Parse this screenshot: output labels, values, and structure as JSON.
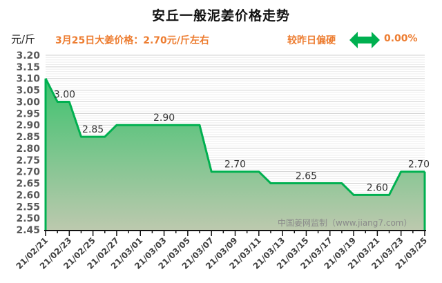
{
  "header": {
    "title": "安丘一般泥姜价格走势",
    "unit": "元/斤",
    "headline": "3月25日大姜价格：2.70元/斤左右",
    "compare_label": "较昨日偏硬",
    "change_icon": "left-right-arrow-icon",
    "change_pct": "0.00%"
  },
  "colors": {
    "accent": "#ED7D31",
    "line": "#00B050",
    "fill_top": "#3DC26E",
    "fill_bottom": "#BCC9AE",
    "arrow": "#00B050"
  },
  "watermark": "中国姜网监制（www.jiang7.com）",
  "chart_data": {
    "type": "area",
    "title": "安丘一般泥姜价格走势",
    "xlabel": "",
    "ylabel": "元/斤",
    "ylim": [
      2.45,
      3.2
    ],
    "ytick_step": 0.05,
    "yticks": [
      "3.20",
      "3.15",
      "3.10",
      "3.05",
      "3.00",
      "2.95",
      "2.90",
      "2.85",
      "2.80",
      "2.75",
      "2.70",
      "2.65",
      "2.60",
      "2.55",
      "2.50",
      "2.45"
    ],
    "xtick_labels": [
      "21/02/21",
      "21/02/23",
      "21/02/25",
      "21/02/27",
      "21/03/01",
      "21/03/03",
      "21/03/05",
      "21/03/07",
      "21/03/09",
      "21/03/11",
      "21/03/13",
      "21/03/15",
      "21/03/17",
      "21/03/19",
      "21/03/21",
      "21/03/23",
      "21/03/25"
    ],
    "x": [
      "21/02/21",
      "21/02/22",
      "21/02/23",
      "21/02/24",
      "21/02/25",
      "21/02/26",
      "21/02/27",
      "21/02/28",
      "21/03/01",
      "21/03/02",
      "21/03/03",
      "21/03/04",
      "21/03/05",
      "21/03/06",
      "21/03/07",
      "21/03/08",
      "21/03/09",
      "21/03/10",
      "21/03/11",
      "21/03/12",
      "21/03/13",
      "21/03/14",
      "21/03/15",
      "21/03/16",
      "21/03/17",
      "21/03/18",
      "21/03/19",
      "21/03/20",
      "21/03/21",
      "21/03/22",
      "21/03/23",
      "21/03/24",
      "21/03/25"
    ],
    "values": [
      3.1,
      3.0,
      3.0,
      2.85,
      2.85,
      2.85,
      2.9,
      2.9,
      2.9,
      2.9,
      2.9,
      2.9,
      2.9,
      2.9,
      2.7,
      2.7,
      2.7,
      2.7,
      2.7,
      2.65,
      2.65,
      2.65,
      2.65,
      2.65,
      2.65,
      2.65,
      2.6,
      2.6,
      2.6,
      2.6,
      2.7,
      2.7,
      2.7
    ],
    "annotations": [
      {
        "text": "3.00",
        "index": 1.6,
        "value": 3.0
      },
      {
        "text": "2.85",
        "index": 4.0,
        "value": 2.85
      },
      {
        "text": "2.90",
        "index": 10.0,
        "value": 2.9
      },
      {
        "text": "2.70",
        "index": 16.0,
        "value": 2.7
      },
      {
        "text": "2.65",
        "index": 22.0,
        "value": 2.65
      },
      {
        "text": "2.60",
        "index": 28.0,
        "value": 2.6
      },
      {
        "text": "2.70",
        "index": 31.5,
        "value": 2.7
      }
    ],
    "grid": true,
    "legend": "none"
  }
}
